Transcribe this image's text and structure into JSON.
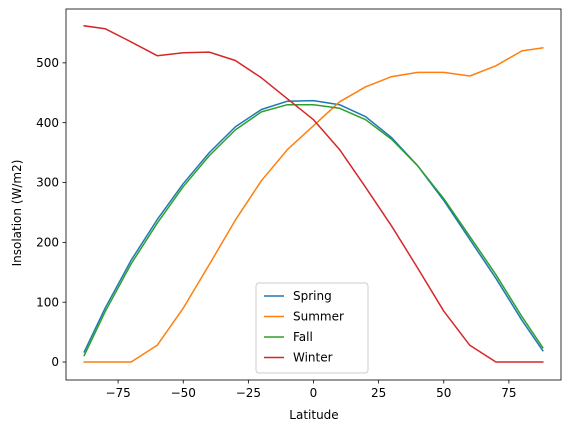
{
  "chart_data": {
    "type": "line",
    "title": "",
    "xlabel": "Latitude",
    "ylabel": "Insolation (W/m2)",
    "xlim": [
      -95,
      95
    ],
    "ylim": [
      -30,
      590
    ],
    "xticks": [
      -75,
      -50,
      -25,
      0,
      25,
      50,
      75
    ],
    "yticks": [
      0,
      100,
      200,
      300,
      400,
      500
    ],
    "xtick_labels": [
      "−75",
      "−50",
      "−25",
      "0",
      "25",
      "50",
      "75"
    ],
    "ytick_labels": [
      "0",
      "100",
      "200",
      "300",
      "400",
      "500"
    ],
    "grid": false,
    "legend_position": "bottom-center",
    "x": [
      -88,
      -80,
      -70,
      -60,
      -50,
      -40,
      -30,
      -20,
      -10,
      0,
      10,
      20,
      30,
      40,
      50,
      60,
      70,
      80,
      88
    ],
    "series": [
      {
        "name": "Spring",
        "color": "#1f77b4",
        "values": [
          17,
          90,
          170,
          238,
          298,
          350,
          393,
          422,
          436,
          437,
          430,
          410,
          375,
          328,
          270,
          205,
          140,
          70,
          19
        ]
      },
      {
        "name": "Summer",
        "color": "#ff7f0e",
        "values": [
          0,
          0,
          0,
          28,
          90,
          163,
          237,
          303,
          355,
          395,
          435,
          460,
          477,
          484,
          484,
          478,
          495,
          520,
          525
        ]
      },
      {
        "name": "Fall",
        "color": "#2ca02c",
        "values": [
          11,
          84,
          164,
          232,
          293,
          345,
          388,
          418,
          430,
          430,
          424,
          405,
          372,
          328,
          273,
          210,
          146,
          76,
          24
        ]
      },
      {
        "name": "Winter",
        "color": "#d62728",
        "values": [
          562,
          557,
          535,
          512,
          517,
          518,
          504,
          475,
          440,
          405,
          355,
          292,
          227,
          157,
          85,
          28,
          0,
          0,
          0
        ]
      }
    ]
  }
}
